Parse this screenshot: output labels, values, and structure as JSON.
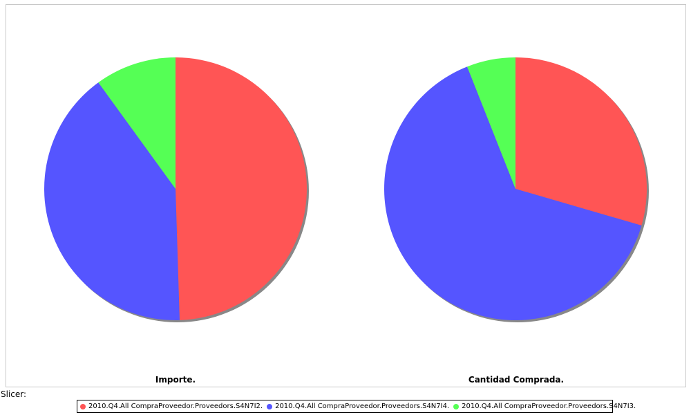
{
  "chart_data": [
    {
      "type": "pie",
      "title": "Importe.",
      "categories": [
        "2010.Q4.All CompraProveedor.Proveedors.S4N7I2.",
        "2010.Q4.All CompraProveedor.Proveedors.S4N7I4.",
        "2010.Q4.All CompraProveedor.Proveedors.S4N7I3."
      ],
      "values": [
        49.5,
        40.5,
        10.0
      ],
      "colors": [
        "#ff5555",
        "#5555ff",
        "#55ff55"
      ]
    },
    {
      "type": "pie",
      "title": "Cantidad Comprada.",
      "categories": [
        "2010.Q4.All CompraProveedor.Proveedors.S4N7I2.",
        "2010.Q4.All CompraProveedor.Proveedors.S4N7I4.",
        "2010.Q4.All CompraProveedor.Proveedors.S4N7I3."
      ],
      "values": [
        29.5,
        64.5,
        6.0
      ],
      "colors": [
        "#ff5555",
        "#5555ff",
        "#55ff55"
      ]
    }
  ],
  "slicer_label": "Slicer:",
  "legend": [
    {
      "label": "2010.Q4.All CompraProveedor.Proveedors.S4N7I2.",
      "color": "#ff5555"
    },
    {
      "label": "2010.Q4.All CompraProveedor.Proveedors.S4N7I4.",
      "color": "#5555ff"
    },
    {
      "label": "2010.Q4.All CompraProveedor.Proveedors.S4N7I3.",
      "color": "#55ff55"
    }
  ]
}
